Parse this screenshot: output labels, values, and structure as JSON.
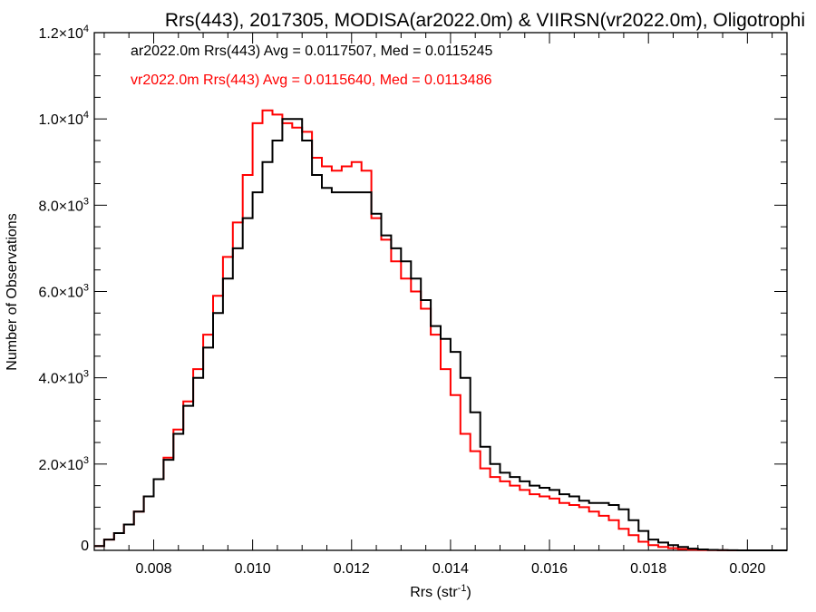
{
  "chart_data": {
    "type": "line",
    "title": "Rrs(443), 2017305, MODISA(ar2022.0m) & VIIRSN(vr2022.0m), Oligotrophi",
    "xlabel": "Rrs (str",
    "xlabel_sup": "-1",
    "xlabel_close": ")",
    "ylabel": "Number of Observations",
    "xlim": [
      0.0068,
      0.0208
    ],
    "ylim": [
      0,
      12000
    ],
    "x_ticks": [
      {
        "value": 0.008,
        "label": "0.008"
      },
      {
        "value": 0.01,
        "label": "0.010"
      },
      {
        "value": 0.012,
        "label": "0.012"
      },
      {
        "value": 0.014,
        "label": "0.014"
      },
      {
        "value": 0.016,
        "label": "0.016"
      },
      {
        "value": 0.018,
        "label": "0.018"
      },
      {
        "value": 0.02,
        "label": "0.020"
      }
    ],
    "y_ticks": [
      {
        "value": 0,
        "label": "0",
        "sup": ""
      },
      {
        "value": 2000,
        "label": "2.0×10",
        "sup": "3"
      },
      {
        "value": 4000,
        "label": "4.0×10",
        "sup": "3"
      },
      {
        "value": 6000,
        "label": "6.0×10",
        "sup": "3"
      },
      {
        "value": 8000,
        "label": "8.0×10",
        "sup": "3"
      },
      {
        "value": 10000,
        "label": "1.0×10",
        "sup": "4"
      },
      {
        "value": 12000,
        "label": "1.2×10",
        "sup": "4"
      }
    ],
    "legend": [
      {
        "text": "ar2022.0m Rrs(443) Avg = 0.0117507, Med = 0.0115245",
        "color": "#000000"
      },
      {
        "text": "vr2022.0m Rrs(443) Avg = 0.0115640, Med = 0.0113486",
        "color": "#ff0000"
      }
    ],
    "series": [
      {
        "color": "#000000",
        "points": [
          [
            0.0068,
            100
          ],
          [
            0.007,
            250
          ],
          [
            0.0072,
            400
          ],
          [
            0.0074,
            600
          ],
          [
            0.0076,
            900
          ],
          [
            0.0078,
            1250
          ],
          [
            0.008,
            1650
          ],
          [
            0.0082,
            2100
          ],
          [
            0.0084,
            2700
          ],
          [
            0.0086,
            3350
          ],
          [
            0.0088,
            4000
          ],
          [
            0.009,
            4700
          ],
          [
            0.0092,
            5500
          ],
          [
            0.0094,
            6300
          ],
          [
            0.0096,
            7000
          ],
          [
            0.0098,
            7700
          ],
          [
            0.01,
            8300
          ],
          [
            0.0102,
            9000
          ],
          [
            0.0104,
            9500
          ],
          [
            0.0106,
            10000
          ],
          [
            0.0108,
            10000
          ],
          [
            0.011,
            9500
          ],
          [
            0.0112,
            8700
          ],
          [
            0.0114,
            8400
          ],
          [
            0.0116,
            8300
          ],
          [
            0.0118,
            8300
          ],
          [
            0.012,
            8300
          ],
          [
            0.0122,
            8300
          ],
          [
            0.0124,
            7800
          ],
          [
            0.0126,
            7300
          ],
          [
            0.0128,
            7000
          ],
          [
            0.013,
            6700
          ],
          [
            0.0132,
            6300
          ],
          [
            0.0134,
            5800
          ],
          [
            0.0136,
            5200
          ],
          [
            0.0138,
            4900
          ],
          [
            0.014,
            4600
          ],
          [
            0.0142,
            4000
          ],
          [
            0.0144,
            3200
          ],
          [
            0.0146,
            2400
          ],
          [
            0.0148,
            2000
          ],
          [
            0.015,
            1800
          ],
          [
            0.0152,
            1700
          ],
          [
            0.0154,
            1600
          ],
          [
            0.0156,
            1500
          ],
          [
            0.0158,
            1450
          ],
          [
            0.016,
            1400
          ],
          [
            0.0162,
            1300
          ],
          [
            0.0164,
            1250
          ],
          [
            0.0166,
            1150
          ],
          [
            0.0168,
            1100
          ],
          [
            0.017,
            1100
          ],
          [
            0.0172,
            1050
          ],
          [
            0.0174,
            950
          ],
          [
            0.0176,
            700
          ],
          [
            0.0178,
            450
          ],
          [
            0.018,
            250
          ],
          [
            0.0182,
            180
          ],
          [
            0.0184,
            120
          ],
          [
            0.0186,
            80
          ],
          [
            0.0188,
            40
          ],
          [
            0.019,
            20
          ],
          [
            0.0192,
            10
          ],
          [
            0.0194,
            5
          ],
          [
            0.0196,
            3
          ],
          [
            0.0198,
            1
          ],
          [
            0.02,
            0
          ],
          [
            0.0208,
            0
          ]
        ]
      },
      {
        "color": "#ff0000",
        "points": [
          [
            0.0068,
            100
          ],
          [
            0.007,
            250
          ],
          [
            0.0072,
            400
          ],
          [
            0.0074,
            600
          ],
          [
            0.0076,
            900
          ],
          [
            0.0078,
            1250
          ],
          [
            0.008,
            1650
          ],
          [
            0.0082,
            2150
          ],
          [
            0.0084,
            2800
          ],
          [
            0.0086,
            3450
          ],
          [
            0.0088,
            4200
          ],
          [
            0.009,
            5000
          ],
          [
            0.0092,
            5900
          ],
          [
            0.0094,
            6800
          ],
          [
            0.0096,
            7600
          ],
          [
            0.0098,
            8700
          ],
          [
            0.01,
            9900
          ],
          [
            0.0102,
            10200
          ],
          [
            0.0104,
            10100
          ],
          [
            0.0106,
            9900
          ],
          [
            0.0108,
            9800
          ],
          [
            0.011,
            9700
          ],
          [
            0.0112,
            9100
          ],
          [
            0.0114,
            8900
          ],
          [
            0.0116,
            8800
          ],
          [
            0.0118,
            8900
          ],
          [
            0.012,
            9000
          ],
          [
            0.0122,
            8800
          ],
          [
            0.0124,
            7700
          ],
          [
            0.0126,
            7200
          ],
          [
            0.0128,
            6700
          ],
          [
            0.013,
            6300
          ],
          [
            0.0132,
            6000
          ],
          [
            0.0134,
            5600
          ],
          [
            0.0136,
            5000
          ],
          [
            0.0138,
            4200
          ],
          [
            0.014,
            3600
          ],
          [
            0.0142,
            2700
          ],
          [
            0.0144,
            2300
          ],
          [
            0.0146,
            1900
          ],
          [
            0.0148,
            1700
          ],
          [
            0.015,
            1600
          ],
          [
            0.0152,
            1500
          ],
          [
            0.0154,
            1400
          ],
          [
            0.0156,
            1300
          ],
          [
            0.0158,
            1250
          ],
          [
            0.016,
            1200
          ],
          [
            0.0162,
            1100
          ],
          [
            0.0164,
            1050
          ],
          [
            0.0166,
            1000
          ],
          [
            0.0168,
            900
          ],
          [
            0.017,
            800
          ],
          [
            0.0172,
            700
          ],
          [
            0.0174,
            500
          ],
          [
            0.0176,
            350
          ],
          [
            0.0178,
            200
          ],
          [
            0.018,
            120
          ],
          [
            0.0182,
            80
          ],
          [
            0.0184,
            50
          ],
          [
            0.0186,
            30
          ],
          [
            0.0188,
            15
          ],
          [
            0.019,
            8
          ],
          [
            0.0192,
            4
          ],
          [
            0.0194,
            2
          ],
          [
            0.0196,
            1
          ],
          [
            0.0198,
            0
          ],
          [
            0.02,
            0
          ],
          [
            0.0208,
            0
          ]
        ]
      }
    ]
  }
}
